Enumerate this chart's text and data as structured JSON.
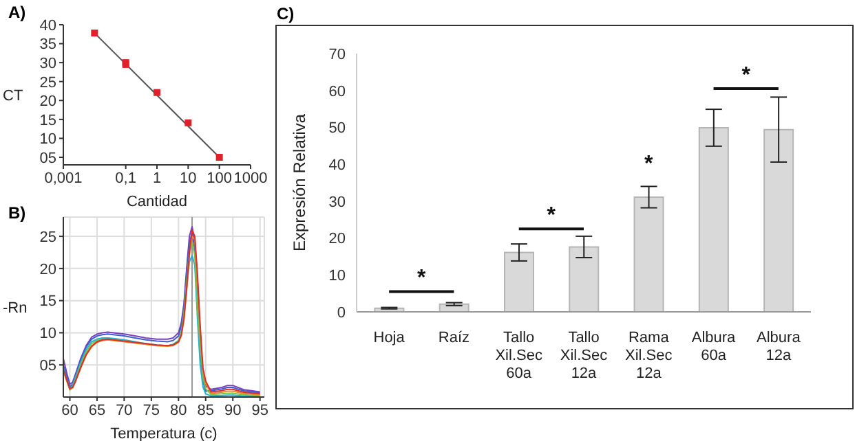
{
  "chart_data": [
    {
      "type": "scatter",
      "title": "A)",
      "xlabel": "Cantidad",
      "ylabel": "CT",
      "log": "x",
      "grid": false,
      "xlim": [
        0.001,
        1000
      ],
      "xticks": [
        {
          "value": 0.001,
          "label": "0,001"
        },
        {
          "value": 0.1,
          "label": "0,1"
        },
        1,
        10,
        100,
        1000
      ],
      "ylim": [
        3,
        40
      ],
      "yticks": [
        {
          "value": 5,
          "label": "05"
        },
        10,
        15,
        20,
        25,
        30,
        35,
        40
      ],
      "series": [
        {
          "type": "scatter",
          "color": "#e0202a",
          "marker": "square",
          "x": [
            0.01,
            0.1,
            0.1,
            1,
            10,
            100
          ],
          "values": [
            37.8,
            29.5,
            30,
            22.1,
            14.1,
            5
          ]
        },
        {
          "type": "line",
          "color": "#555555",
          "x": [
            0.01,
            100
          ],
          "values": [
            37.8,
            5
          ]
        }
      ]
    },
    {
      "type": "line",
      "title": "B)",
      "xlabel": "Temperatura (c)",
      "ylabel": "-Rn",
      "grid": true,
      "xlim": [
        58.8,
        95.8
      ],
      "xticks": [
        60,
        65,
        70,
        75,
        80,
        85,
        90,
        95
      ],
      "ylim": [
        0,
        28
      ],
      "yticks": [
        {
          "value": 5,
          "label": "05"
        },
        10,
        15,
        20,
        25
      ],
      "ref_lines": [
        {
          "axis": "x",
          "value": 82.5,
          "color": "#999999"
        }
      ],
      "x": [
        58.8,
        59.5,
        60,
        60.5,
        61,
        62,
        63,
        64,
        65,
        66,
        67,
        68,
        70,
        72,
        74,
        76,
        78,
        79,
        80,
        80.5,
        81,
        81.5,
        82,
        82.5,
        83,
        83.5,
        84,
        84.5,
        85,
        86,
        88,
        89,
        90,
        92,
        95
      ],
      "series": [
        {
          "color": "#7b3fbf",
          "values": [
            6,
            3.5,
            2,
            2.3,
            3.5,
            6,
            8,
            9.3,
            9.8,
            10,
            10.1,
            10,
            9.8,
            9.5,
            9.2,
            9,
            9,
            9.2,
            10,
            11.5,
            14.5,
            20,
            25,
            26.5,
            24,
            17,
            9,
            3.5,
            1.7,
            1.2,
            1.5,
            1.8,
            1.8,
            1.15,
            0.8
          ]
        },
        {
          "color": "#3a5fcd",
          "values": [
            5,
            3,
            1.6,
            2,
            3.2,
            5.7,
            7.8,
            9,
            9.5,
            9.7,
            9.8,
            9.7,
            9.5,
            9.2,
            8.9,
            8.7,
            8.6,
            8.8,
            9.5,
            11,
            14,
            19.5,
            24,
            25.5,
            23,
            15,
            7,
            2.5,
            0.9,
            1,
            1.25,
            1.5,
            1.5,
            0.95,
            0.65
          ]
        },
        {
          "color": "#1fb3d1",
          "values": [
            4.5,
            2.6,
            1.4,
            1.8,
            3,
            5.4,
            7.4,
            8.6,
            9,
            9.2,
            9.2,
            9.1,
            8.9,
            8.6,
            8.3,
            8.1,
            8,
            8.2,
            8.8,
            10,
            12.5,
            17,
            21,
            22,
            20.5,
            12,
            5,
            1.6,
            0.5,
            0.2,
            0.25,
            0.3,
            0.3,
            0.15,
            0.05
          ]
        },
        {
          "color": "#7cc242",
          "values": [
            4,
            2.3,
            1.1,
            1.5,
            2.6,
            5,
            7,
            8.3,
            8.8,
            9,
            9,
            8.9,
            8.7,
            8.5,
            8.2,
            8,
            8,
            8.1,
            8.7,
            10,
            13,
            18,
            22.5,
            24,
            22,
            13.5,
            8,
            3,
            1.3,
            0.4,
            0.5,
            0.6,
            0.6,
            0.35,
            0.2
          ]
        },
        {
          "color": "#e8892b",
          "values": [
            4.2,
            2.4,
            1.2,
            1.4,
            2.3,
            4.5,
            6.5,
            7.8,
            8.5,
            8.8,
            8.9,
            8.8,
            8.6,
            8.4,
            8.2,
            8,
            7.9,
            8,
            8.5,
            9.5,
            12,
            16.5,
            22,
            25,
            24.5,
            18,
            10,
            4,
            2.1,
            0.6,
            0.75,
            0.9,
            0.9,
            0.55,
            0.35
          ]
        },
        {
          "color": "#d62f2f",
          "values": [
            4.3,
            2.5,
            1.3,
            1.5,
            2.4,
            4.6,
            6.6,
            7.9,
            8.6,
            8.9,
            9,
            8.9,
            8.7,
            8.5,
            8.3,
            8.1,
            8,
            8.1,
            8.6,
            9.6,
            12.2,
            17,
            22.5,
            26,
            25,
            19,
            11,
            4.5,
            2.5,
            0.8,
            1,
            1.2,
            1.2,
            0.75,
            0.5
          ]
        }
      ]
    },
    {
      "type": "bar",
      "title": "C)",
      "ylabel": "Expresión Relativa",
      "color": "#d9d9d9",
      "grid": false,
      "categories": [
        "Hoja",
        "Raíz",
        "Tallo Xil.Sec 60a",
        "Tallo Xil.Sec 12a",
        "Rama Xil.Sec 12a",
        "Albura 60a",
        "Albura 12a"
      ],
      "values": [
        1.0,
        2.1,
        16.1,
        17.6,
        31.1,
        49.9,
        49.4
      ],
      "errors": [
        0.2,
        0.4,
        2.3,
        2.9,
        2.9,
        5,
        8.8
      ],
      "ylim": [
        0,
        70
      ],
      "yticks": [
        0,
        10,
        20,
        30,
        40,
        50,
        60,
        70
      ],
      "annotations": [
        "*",
        "*",
        "*",
        "*"
      ]
    }
  ]
}
